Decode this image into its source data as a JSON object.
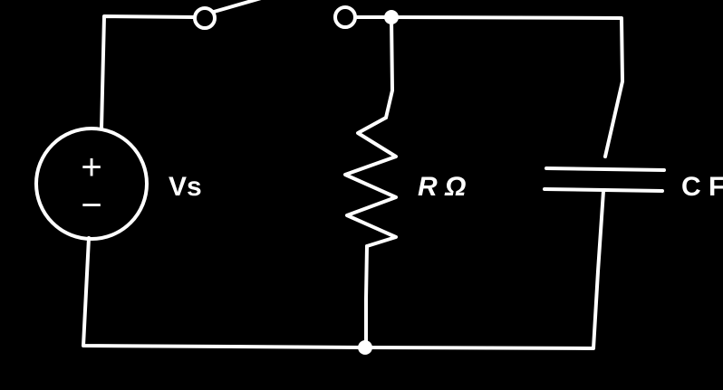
{
  "diagram": {
    "type": "circuit-schematic",
    "background": "#000000",
    "stroke_color": "#ffffff",
    "components": {
      "source": {
        "label": "Vs",
        "plus": "+",
        "minus": "−"
      },
      "switch": {
        "state": "open"
      },
      "resistor": {
        "label": "R Ω"
      },
      "capacitor": {
        "label": "C F"
      }
    }
  }
}
